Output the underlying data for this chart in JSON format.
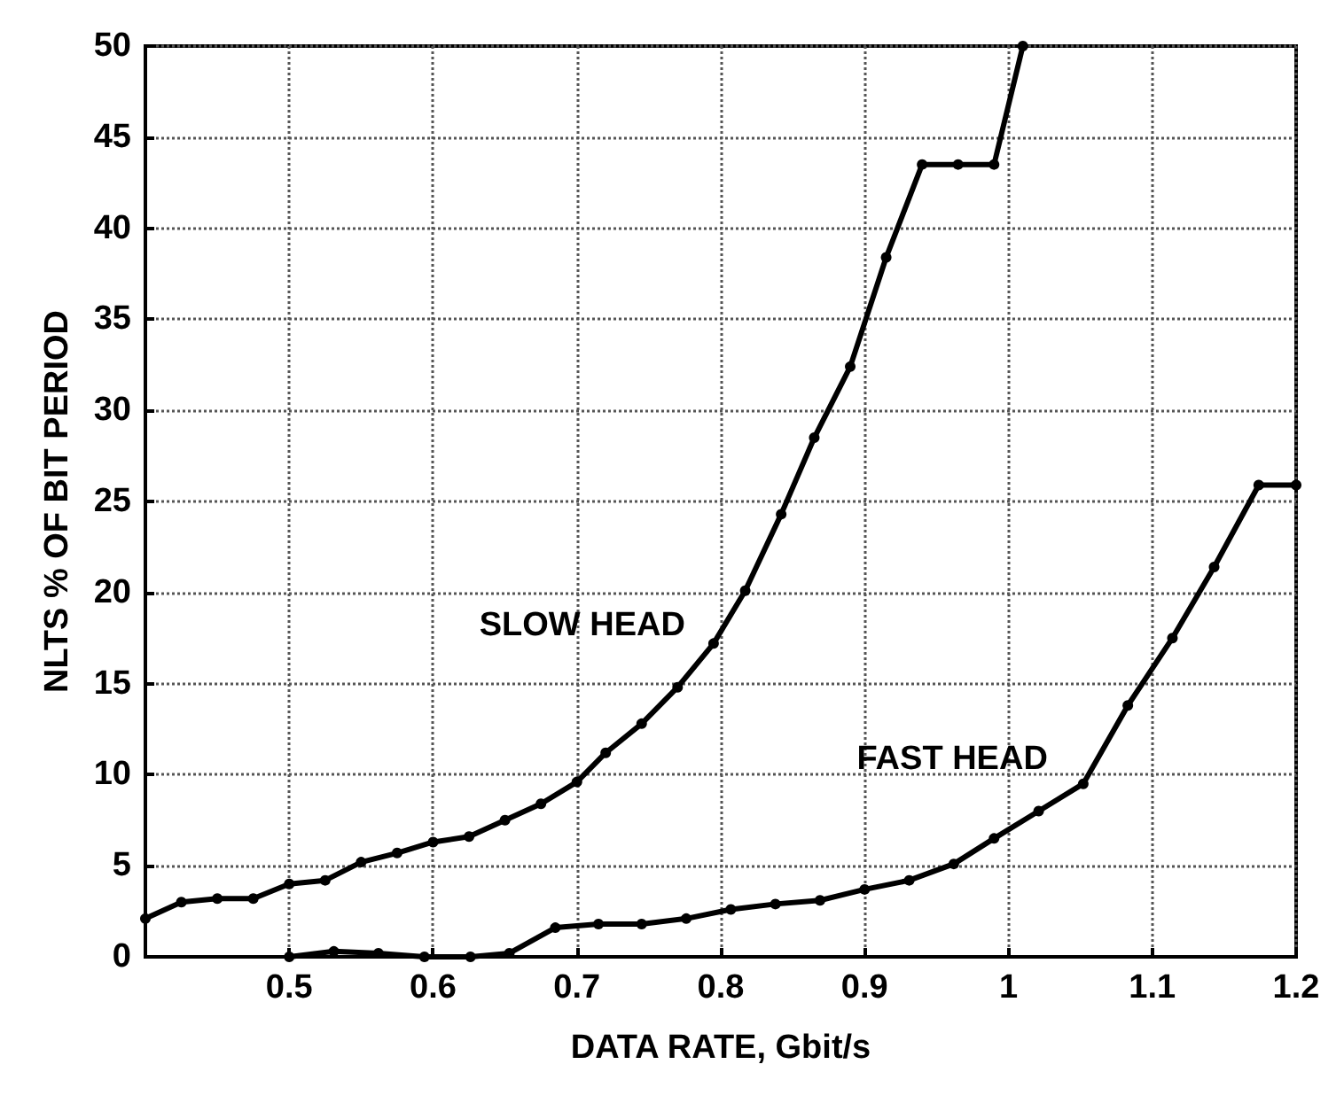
{
  "chart_data": {
    "type": "line",
    "xlabel": "DATA RATE, Gbit/s",
    "ylabel": "NLTS % OF BIT PERIOD",
    "xlim": [
      0.4,
      1.2
    ],
    "xticks": [
      0.5,
      0.6,
      0.7,
      0.8,
      0.9,
      1,
      1.1,
      1.2
    ],
    "ylim": [
      0,
      50
    ],
    "yticks": [
      0,
      5,
      10,
      15,
      20,
      25,
      30,
      35,
      40,
      45,
      50
    ],
    "grid": true,
    "marker": "circle",
    "line_style": "solid",
    "legend": false,
    "series": [
      {
        "name": "SLOW HEAD",
        "color": "#000000",
        "x": [
          0.4,
          0.425,
          0.45,
          0.475,
          0.5,
          0.525,
          0.55,
          0.575,
          0.6,
          0.625,
          0.65,
          0.675,
          0.7,
          0.72,
          0.745,
          0.77,
          0.795,
          0.817,
          0.842,
          0.865,
          0.89,
          0.915,
          0.94,
          0.965,
          0.99,
          1.01
        ],
        "values": [
          2.1,
          3.0,
          3.2,
          3.2,
          4.0,
          4.2,
          5.2,
          5.7,
          6.3,
          6.6,
          7.5,
          8.4,
          9.6,
          11.2,
          12.8,
          14.8,
          17.2,
          20.1,
          24.3,
          28.5,
          32.4,
          38.4,
          43.5,
          43.5,
          43.5,
          50
        ]
      },
      {
        "name": "FAST HEAD",
        "color": "#000000",
        "x": [
          0.5,
          0.531,
          0.562,
          0.594,
          0.626,
          0.653,
          0.685,
          0.715,
          0.745,
          0.776,
          0.807,
          0.838,
          0.869,
          0.9,
          0.931,
          0.962,
          0.99,
          1.021,
          1.052,
          1.083,
          1.114,
          1.143,
          1.174,
          1.2
        ],
        "values": [
          0,
          0.3,
          0.2,
          0,
          0,
          0.2,
          1.6,
          1.8,
          1.8,
          2.1,
          2.6,
          2.9,
          3.1,
          3.7,
          4.2,
          5.1,
          6.5,
          8.0,
          9.5,
          13.8,
          17.5,
          21.4,
          25.9,
          25.9
        ]
      }
    ]
  }
}
